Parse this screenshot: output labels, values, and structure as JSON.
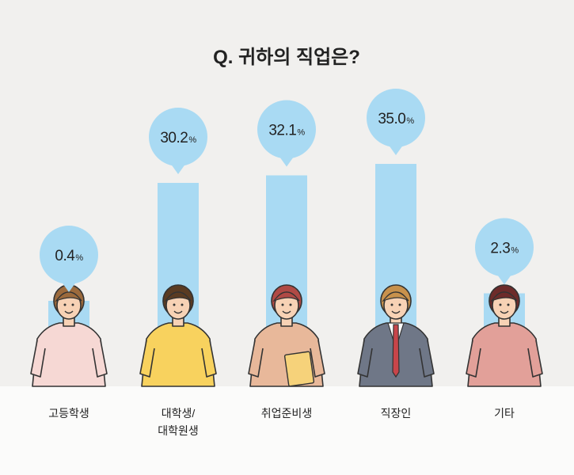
{
  "title": "Q. 귀하의 직업은?",
  "colors": {
    "background": "#f1f0ee",
    "floor": "#fbfbfa",
    "bar": "#a9daf3",
    "bubble": "#a9daf3",
    "text": "#222222"
  },
  "chart_data": {
    "type": "bar",
    "title": "Q. 귀하의 직업은?",
    "unit": "%",
    "categories": [
      "고등학생",
      "대학생/대학원생",
      "취업준비생",
      "직장인",
      "기타"
    ],
    "category_lines": [
      [
        "고등학생"
      ],
      [
        "대학생/",
        "대학원생"
      ],
      [
        "취업준비생"
      ],
      [
        "직장인"
      ],
      [
        "기타"
      ]
    ],
    "values": [
      0.4,
      30.2,
      32.1,
      35.0,
      2.3
    ],
    "value_labels": [
      "0.4",
      "30.2",
      "32.1",
      "35.0",
      "2.3"
    ],
    "ylim": [
      0,
      40
    ],
    "grid": false,
    "legend": "none"
  }
}
